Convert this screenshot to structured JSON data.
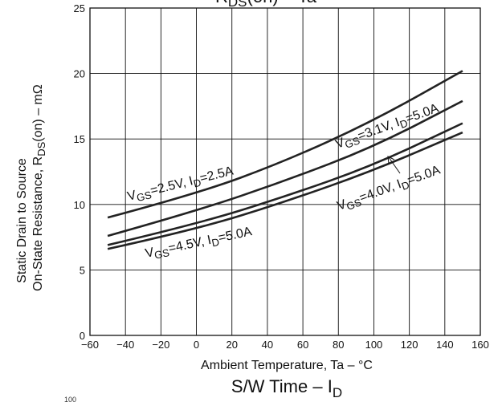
{
  "chart_data": {
    "type": "line",
    "title_top": {
      "main": "R",
      "sub": "DS",
      "rest": "(on)   –   Ta"
    },
    "xlabel": "Ambient Temperature, Ta  –  °C",
    "ylabel_line1": "Static Drain to Source",
    "ylabel_line2": {
      "main": "On-State Resistance, R",
      "sub": "DS",
      "rest": "(on)  –  mΩ"
    },
    "xlim": [
      -60,
      160
    ],
    "ylim": [
      0,
      25
    ],
    "xticks": [
      -60,
      -40,
      -20,
      0,
      20,
      40,
      60,
      80,
      100,
      120,
      140,
      160
    ],
    "yticks": [
      0,
      5,
      10,
      15,
      20,
      25
    ],
    "grid": true,
    "series": [
      {
        "x": [
          -50,
          0,
          50,
          100,
          150
        ],
        "y": [
          9.0,
          10.8,
          13.3,
          16.4,
          20.2
        ]
      },
      {
        "x": [
          -50,
          0,
          50,
          100,
          150
        ],
        "y": [
          7.6,
          9.5,
          11.8,
          14.4,
          17.9
        ]
      },
      {
        "x": [
          -50,
          0,
          50,
          100,
          150
        ],
        "y": [
          6.9,
          8.5,
          10.6,
          13.0,
          16.2
        ]
      },
      {
        "x": [
          -50,
          0,
          50,
          100,
          150
        ],
        "y": [
          6.6,
          8.1,
          10.2,
          12.6,
          15.5
        ]
      }
    ],
    "annotations": [
      {
        "v": "V",
        "vsub": "GS",
        "vrest": "=2.5V, I",
        "isub": "D",
        "irest": "=2.5A"
      },
      {
        "v": "V",
        "vsub": "GS",
        "vrest": "=3.1V, I",
        "isub": "D",
        "irest": "=5.0A"
      },
      {
        "v": "V",
        "vsub": "GS",
        "vrest": "=4.0V, I",
        "isub": "D",
        "irest": "=5.0A"
      },
      {
        "v": "V",
        "vsub": "GS",
        "vrest": "=4.5V, I",
        "isub": "D",
        "irest": "=5.0A"
      }
    ],
    "lower_title": {
      "main": "S/W Time  –  I",
      "sub": "D"
    },
    "lower_axis_fragment": "100"
  },
  "colors": {
    "line": "#222222",
    "grid": "#111111",
    "text": "#111111"
  }
}
